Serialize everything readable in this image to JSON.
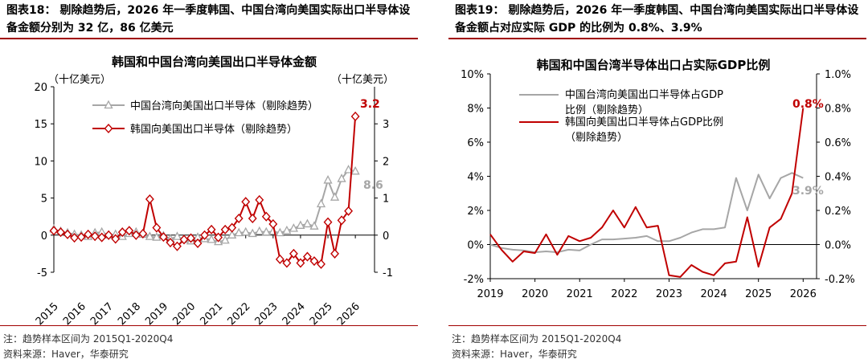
{
  "left": {
    "figure_title": "图表18： 剔除趋势后，2026 年一季度韩国、中国台湾向美国实际出口半导体设备金额分别为 32 亿，86 亿美元",
    "note": "注：趋势样本区间为 2015Q1-2020Q4",
    "source": "资料来源：Haver，华泰研究"
  },
  "right": {
    "figure_title": "图表19： 剔除趋势后，2026 年一季度韩国、中国台湾向美国实际出口半导体设备金额占对应实际 GDP 的比例为 0.8%、3.9%",
    "note": "注：趋势样本区间为 2015Q1-2020Q4",
    "source": "资料来源：Haver，华泰研究"
  },
  "colors": {
    "taiwan": "#a6a6a6",
    "korea": "#c00000",
    "axis": "#000000",
    "title_rule": "#a00000"
  },
  "chart_data": [
    {
      "type": "line",
      "title": "韩国和中国台湾向美国出口半导体金额",
      "ylabel_left": "（十亿美元）",
      "ylabel_right": "（十亿美元）",
      "x_tick_labels": [
        "2015",
        "2016",
        "2017",
        "2018",
        "2019",
        "2020",
        "2021",
        "2022",
        "2023",
        "2024",
        "2025",
        "2026"
      ],
      "ylim_left": [
        -5,
        20
      ],
      "yticks_left": [
        "-5",
        "0",
        "5",
        "10",
        "15",
        "20"
      ],
      "ylim_right": [
        -1,
        4
      ],
      "yticks_right": [
        "-1",
        "0",
        "1",
        "2",
        "3"
      ],
      "legend_position": "top-left",
      "end_labels": [
        "3.2",
        "8.6"
      ],
      "series": [
        {
          "name": "中国台湾向美国出口半导体（剔除趋势）",
          "axis": "left",
          "marker": "triangle",
          "x": [
            2015.0,
            2015.25,
            2015.5,
            2015.75,
            2016.0,
            2016.25,
            2016.5,
            2016.75,
            2017.0,
            2017.25,
            2017.5,
            2017.75,
            2018.0,
            2018.25,
            2018.5,
            2018.75,
            2019.0,
            2019.25,
            2019.5,
            2019.75,
            2020.0,
            2020.25,
            2020.5,
            2020.75,
            2021.0,
            2021.25,
            2021.5,
            2021.75,
            2022.0,
            2022.25,
            2022.5,
            2022.75,
            2023.0,
            2023.25,
            2023.5,
            2023.75,
            2024.0,
            2024.25,
            2024.5,
            2024.75,
            2025.0,
            2025.25,
            2025.5,
            2025.75,
            2026.0
          ],
          "values": [
            0.8,
            0.5,
            0.3,
            0.1,
            0.0,
            -0.2,
            0.3,
            0.4,
            0.0,
            0.1,
            -0.2,
            0.2,
            0.4,
            0.1,
            -0.2,
            -0.3,
            -0.1,
            -0.5,
            -0.2,
            -0.6,
            -0.8,
            -0.3,
            -0.5,
            -0.6,
            -0.9,
            -0.7,
            0.0,
            0.3,
            0.4,
            0.2,
            0.5,
            0.4,
            0.5,
            0.3,
            0.6,
            0.9,
            1.3,
            1.5,
            1.2,
            4.2,
            7.4,
            5.1,
            7.6,
            8.8,
            8.6
          ]
        },
        {
          "name": "韩国向美国出口半导体（剔除趋势）",
          "axis": "right",
          "marker": "diamond",
          "x": [
            2015.0,
            2015.25,
            2015.5,
            2015.75,
            2016.0,
            2016.25,
            2016.5,
            2016.75,
            2017.0,
            2017.25,
            2017.5,
            2017.75,
            2018.0,
            2018.25,
            2018.5,
            2018.75,
            2019.0,
            2019.25,
            2019.5,
            2019.75,
            2020.0,
            2020.25,
            2020.5,
            2020.75,
            2021.0,
            2021.25,
            2021.5,
            2021.75,
            2022.0,
            2022.25,
            2022.5,
            2022.75,
            2023.0,
            2023.25,
            2023.5,
            2023.75,
            2024.0,
            2024.25,
            2024.5,
            2024.75,
            2025.0,
            2025.25,
            2025.5,
            2025.75,
            2026.0
          ],
          "values": [
            0.12,
            0.08,
            0.02,
            -0.07,
            -0.05,
            0.02,
            -0.03,
            -0.06,
            0.0,
            -0.1,
            0.08,
            0.12,
            0.0,
            0.04,
            0.97,
            0.2,
            -0.05,
            -0.2,
            -0.3,
            -0.12,
            -0.08,
            -0.22,
            0.0,
            0.15,
            -0.06,
            0.15,
            0.2,
            0.45,
            0.9,
            0.45,
            0.95,
            0.5,
            0.3,
            -0.65,
            -0.75,
            -0.5,
            -0.75,
            -0.58,
            -0.7,
            -0.78,
            0.35,
            -0.5,
            0.4,
            0.65,
            3.2
          ]
        }
      ]
    },
    {
      "type": "line",
      "title": "韩国和中国台湾半导体出口占实际GDP比例",
      "x_tick_labels": [
        "2019",
        "2020",
        "2021",
        "2022",
        "2023",
        "2024",
        "2025",
        "2026"
      ],
      "ylim_left": [
        -2,
        10
      ],
      "yticks_left": [
        "-2%",
        "0%",
        "2%",
        "4%",
        "6%",
        "8%",
        "10%"
      ],
      "ylim_right": [
        -0.2,
        1.0
      ],
      "yticks_right": [
        "-0.2%",
        "0.0%",
        "0.2%",
        "0.4%",
        "0.6%",
        "0.8%",
        "1.0%"
      ],
      "legend_position": "top-left",
      "end_labels": [
        "0.8%",
        "3.9%"
      ],
      "series": [
        {
          "name": "中国台湾向美国出口半导体占GDP比例（剔除趋势）",
          "axis": "left",
          "x": [
            2019.0,
            2019.25,
            2019.5,
            2019.75,
            2020.0,
            2020.25,
            2020.5,
            2020.75,
            2021.0,
            2021.25,
            2021.5,
            2021.75,
            2022.0,
            2022.25,
            2022.5,
            2022.75,
            2023.0,
            2023.25,
            2023.5,
            2023.75,
            2024.0,
            2024.25,
            2024.5,
            2024.75,
            2025.0,
            2025.25,
            2025.5,
            2025.75,
            2026.0
          ],
          "values": [
            0.0,
            -0.2,
            -0.3,
            -0.35,
            -0.45,
            -0.4,
            -0.45,
            -0.3,
            -0.35,
            0.0,
            0.3,
            0.3,
            0.35,
            0.4,
            0.5,
            0.2,
            0.2,
            0.4,
            0.7,
            0.9,
            0.9,
            1.0,
            3.9,
            2.0,
            4.1,
            2.7,
            3.9,
            4.2,
            3.9
          ]
        },
        {
          "name": "韩国向美国出口半导体占GDP比例（剔除趋势）",
          "axis": "right",
          "x": [
            2019.0,
            2019.25,
            2019.5,
            2019.75,
            2020.0,
            2020.25,
            2020.5,
            2020.75,
            2021.0,
            2021.25,
            2021.5,
            2021.75,
            2022.0,
            2022.25,
            2022.5,
            2022.75,
            2023.0,
            2023.25,
            2023.5,
            2023.75,
            2024.0,
            2024.25,
            2024.5,
            2024.75,
            2025.0,
            2025.25,
            2025.5,
            2025.75,
            2026.0
          ],
          "values": [
            0.06,
            -0.03,
            -0.1,
            -0.04,
            -0.05,
            0.06,
            -0.06,
            0.05,
            0.02,
            0.04,
            0.1,
            0.2,
            0.1,
            0.22,
            0.1,
            0.11,
            -0.18,
            -0.19,
            -0.12,
            -0.16,
            -0.18,
            -0.11,
            -0.1,
            0.16,
            -0.13,
            0.1,
            0.15,
            0.3,
            0.8
          ]
        }
      ]
    }
  ]
}
